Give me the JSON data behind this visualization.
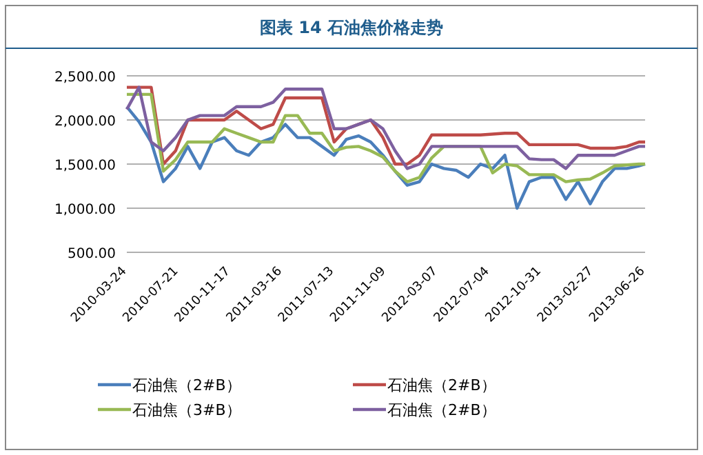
{
  "chart_data": {
    "type": "line",
    "title": "图表 14  石油焦价格走势",
    "x": [
      "2010-03-24",
      "2010-04-21",
      "2010-05-19",
      "2010-06-16",
      "2010-07-14",
      "2010-08-11",
      "2010-09-08",
      "2010-10-06",
      "2010-11-03",
      "2010-12-01",
      "2010-12-29",
      "2011-01-26",
      "2011-02-23",
      "2011-03-23",
      "2011-04-20",
      "2011-05-18",
      "2011-06-15",
      "2011-07-13",
      "2011-08-10",
      "2011-09-07",
      "2011-10-05",
      "2011-11-02",
      "2011-11-30",
      "2011-12-28",
      "2012-01-25",
      "2012-02-22",
      "2012-03-21",
      "2012-04-18",
      "2012-05-16",
      "2012-06-13",
      "2012-07-11",
      "2012-08-08",
      "2012-09-05",
      "2012-10-03",
      "2012-10-31",
      "2012-11-28",
      "2012-12-26",
      "2013-01-23",
      "2013-02-20",
      "2013-03-20",
      "2013-04-17",
      "2013-05-15",
      "2013-06-12",
      "2013-06-26"
    ],
    "series": [
      {
        "name": "石油焦（2#B）",
        "color": "#4a7ebb",
        "values": [
          2150,
          1980,
          1750,
          1300,
          1450,
          1700,
          1450,
          1750,
          1800,
          1650,
          1600,
          1750,
          1800,
          1950,
          1800,
          1800,
          1700,
          1600,
          1780,
          1820,
          1750,
          1600,
          1420,
          1260,
          1300,
          1500,
          1450,
          1430,
          1350,
          1500,
          1450,
          1600,
          1000,
          1300,
          1350,
          1350,
          1100,
          1300,
          1050,
          1300,
          1450,
          1450,
          1480,
          1500
        ]
      },
      {
        "name": "石油焦（2#B）",
        "color": "#be4b48",
        "values": [
          2370,
          2370,
          2370,
          1500,
          1650,
          2000,
          2000,
          2000,
          2000,
          2100,
          2000,
          1900,
          1950,
          2250,
          2250,
          2250,
          2250,
          1750,
          1900,
          1950,
          2000,
          1800,
          1500,
          1500,
          1600,
          1830,
          1830,
          1830,
          1830,
          1830,
          1840,
          1850,
          1850,
          1720,
          1720,
          1720,
          1720,
          1720,
          1680,
          1680,
          1680,
          1700,
          1750,
          1750
        ]
      },
      {
        "name": "石油焦（3#B）",
        "color": "#98b954",
        "values": [
          2290,
          2290,
          2290,
          1420,
          1550,
          1750,
          1750,
          1750,
          1900,
          1850,
          1800,
          1750,
          1750,
          2050,
          2050,
          1850,
          1850,
          1650,
          1690,
          1700,
          1650,
          1580,
          1420,
          1300,
          1350,
          1570,
          1700,
          1700,
          1700,
          1700,
          1400,
          1500,
          1480,
          1380,
          1380,
          1380,
          1300,
          1320,
          1330,
          1400,
          1480,
          1490,
          1500,
          1500
        ]
      },
      {
        "name": "石油焦（2#B）",
        "color": "#7d60a0",
        "values": [
          2120,
          2370,
          1750,
          1650,
          1800,
          2000,
          2050,
          2050,
          2050,
          2150,
          2150,
          2150,
          2200,
          2350,
          2350,
          2350,
          2350,
          1900,
          1900,
          1950,
          2000,
          1900,
          1650,
          1450,
          1500,
          1700,
          1700,
          1700,
          1700,
          1700,
          1700,
          1700,
          1700,
          1560,
          1550,
          1550,
          1450,
          1600,
          1600,
          1600,
          1600,
          1650,
          1700,
          1700
        ]
      }
    ],
    "xlim": [
      "2010-03-24",
      "2013-06-26"
    ],
    "xticks": [
      "2010-03-24",
      "2010-07-21",
      "2010-11-17",
      "2011-03-16",
      "2011-07-13",
      "2011-11-09",
      "2012-03-07",
      "2012-07-04",
      "2012-10-31",
      "2013-02-27",
      "2013-06-26"
    ],
    "ylim": [
      500,
      2500
    ],
    "yticks": [
      {
        "value": 500,
        "label": "500.00"
      },
      {
        "value": 1000,
        "label": "1,000.00"
      },
      {
        "value": 1500,
        "label": "1,500.00"
      },
      {
        "value": 2000,
        "label": "2,000.00"
      },
      {
        "value": 2500,
        "label": "2,500.00"
      }
    ],
    "grid": "y",
    "legend": "bottom",
    "marker": "none",
    "line_style": "solid"
  }
}
